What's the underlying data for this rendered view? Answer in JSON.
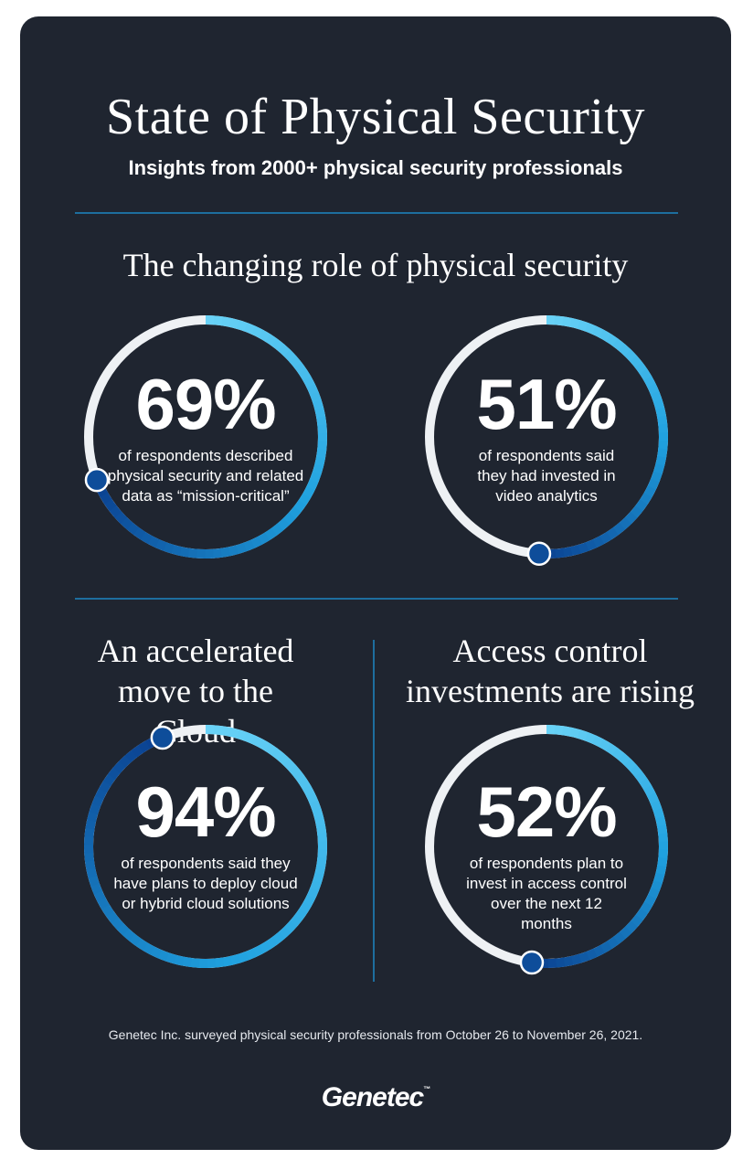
{
  "header": {
    "title": "State of Physical Security",
    "subtitle": "Insights from 2000+ physical security professionals"
  },
  "sections": {
    "changing_role": "The changing role of physical security",
    "cloud": "An accelerated move to the Cloud",
    "access_control": "Access control investments are rising"
  },
  "stats": [
    {
      "percent": "69%",
      "value": 0.69,
      "description": "of respondents described physical security and related data as “mission-critical”"
    },
    {
      "percent": "51%",
      "value": 0.51,
      "description": "of respondents said they had invested in video analytics"
    },
    {
      "percent": "94%",
      "value": 0.94,
      "description": "of respondents said they have plans to deploy cloud or hybrid cloud solutions"
    },
    {
      "percent": "52%",
      "value": 0.52,
      "description": "of respondents plan to invest in access control over the next 12 months"
    }
  ],
  "colors": {
    "background": "#1f2530",
    "track": "#eef1f4",
    "ring_light": "#6ad3f7",
    "ring_mid": "#1fa1df",
    "ring_dark": "#0a3f8f",
    "knob": "#0e4d9a",
    "divider": "#1d6e9e"
  },
  "footnote": "Genetec Inc. surveyed physical security professionals from October 26 to November 26, 2021.",
  "logo": {
    "text": "Genetec",
    "mark": "™"
  }
}
